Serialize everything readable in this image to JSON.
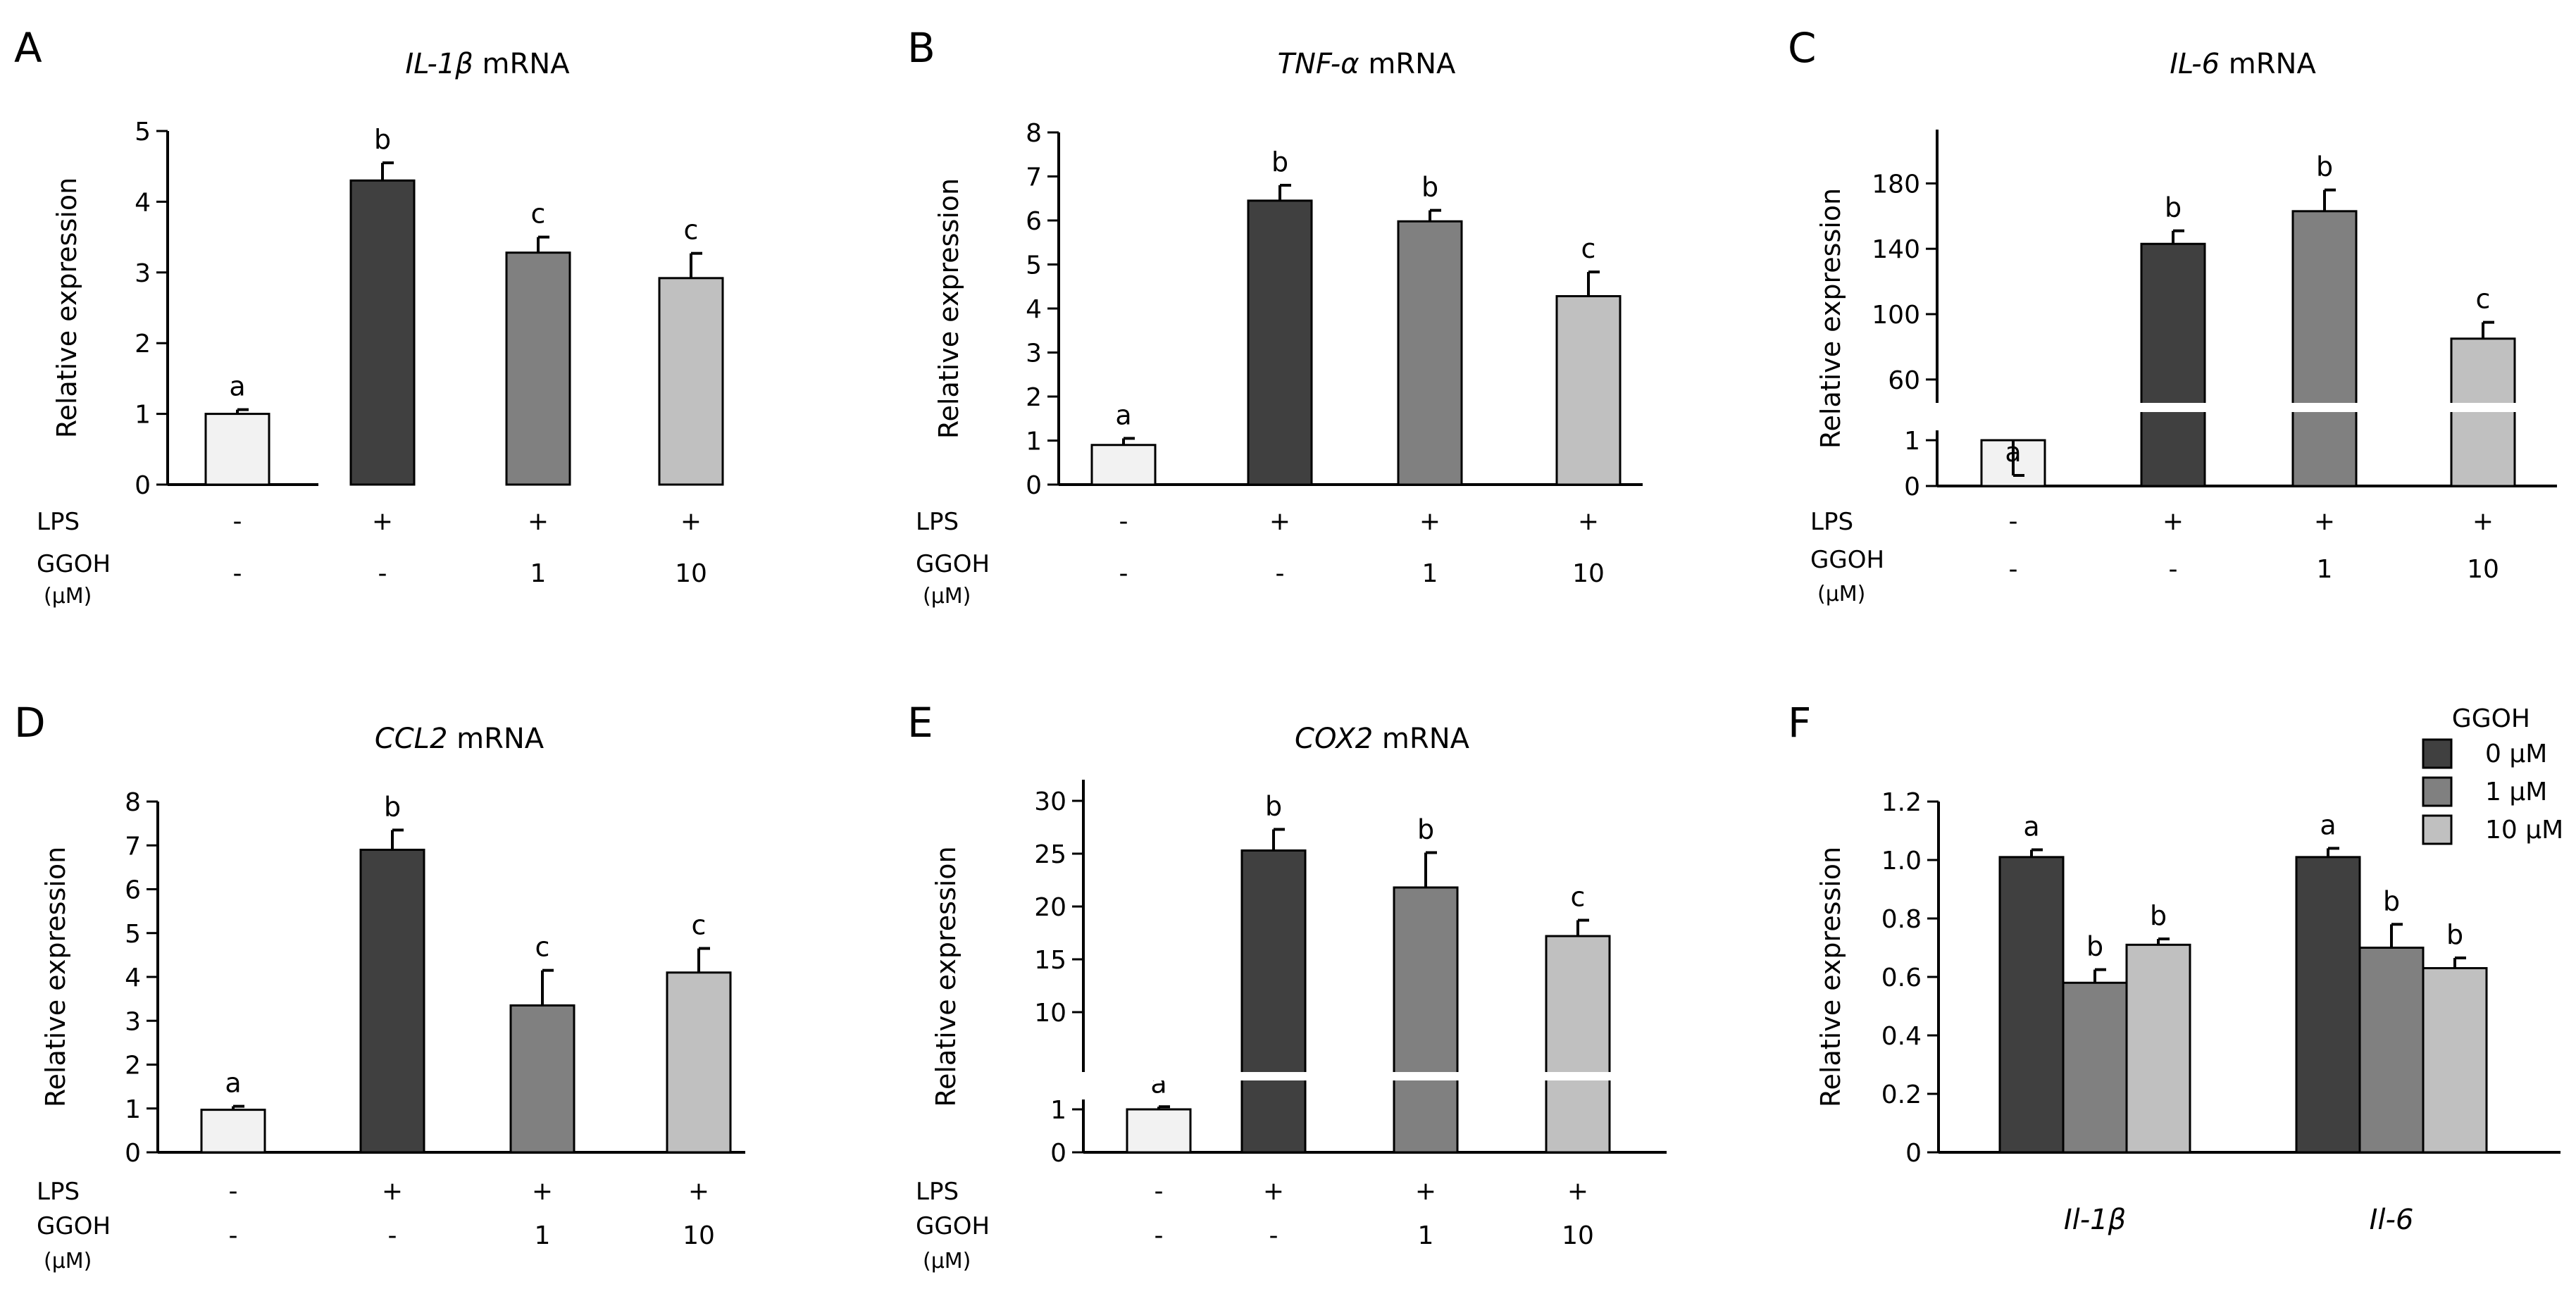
{
  "figure": {
    "colors": {
      "neg": "#f2f2f2",
      "c0": "#404040",
      "c1": "#808080",
      "c10": "#c0c0c0",
      "ink": "#000000"
    }
  },
  "chart_data": [
    {
      "panel": "A",
      "type": "bar",
      "gene": "IL-1β",
      "suffix": " mRNA",
      "ylabel": "Relative expression",
      "ylim": [
        0,
        5
      ],
      "yticks": [
        "0",
        "1",
        "2",
        "3",
        "4",
        "5"
      ],
      "values": [
        1.0,
        4.3,
        3.28,
        2.92
      ],
      "errors": [
        0.06,
        0.25,
        0.22,
        0.35
      ],
      "letters": [
        "a",
        "b",
        "c",
        "c"
      ],
      "lps": [
        "-",
        "+",
        "+",
        "+"
      ],
      "ggoh": [
        "-",
        "-",
        "1",
        "10"
      ]
    },
    {
      "panel": "B",
      "type": "bar",
      "gene": "TNF-α",
      "suffix": " mRNA",
      "ylabel": "Relative expression",
      "ylim": [
        0,
        8
      ],
      "yticks": [
        "0",
        "1",
        "2",
        "3",
        "4",
        "5",
        "6",
        "7",
        "8"
      ],
      "values": [
        0.9,
        6.45,
        5.98,
        4.28
      ],
      "errors": [
        0.15,
        0.35,
        0.25,
        0.55
      ],
      "letters": [
        "a",
        "b",
        "b",
        "c"
      ],
      "lps": [
        "-",
        "+",
        "+",
        "+"
      ],
      "ggoh": [
        "-",
        "-",
        "1",
        "10"
      ]
    },
    {
      "panel": "C",
      "type": "bar",
      "gene": "IL-6",
      "suffix": " mRNA",
      "ylabel": "Relative expression",
      "axis_break": true,
      "ylim_lower": [
        0,
        1
      ],
      "ylim_upper": [
        50,
        200
      ],
      "yticks_lower": [
        "0",
        "1"
      ],
      "yticks_upper": [
        "60",
        "100",
        "140",
        "180"
      ],
      "values": [
        1.0,
        143,
        163,
        85
      ],
      "errors": [
        0.3,
        8,
        13,
        10
      ],
      "letters": [
        "a",
        "b",
        "b",
        "c"
      ],
      "lps": [
        "-",
        "+",
        "+",
        "+"
      ],
      "ggoh": [
        "-",
        "-",
        "1",
        "10"
      ]
    },
    {
      "panel": "D",
      "type": "bar",
      "gene": "CCL2",
      "suffix": " mRNA",
      "ylabel": "Relative expression",
      "ylim": [
        0,
        8
      ],
      "yticks": [
        "0",
        "1",
        "2",
        "3",
        "4",
        "5",
        "6",
        "7",
        "8"
      ],
      "values": [
        0.97,
        6.9,
        3.35,
        4.1
      ],
      "errors": [
        0.08,
        0.45,
        0.8,
        0.55
      ],
      "letters": [
        "a",
        "b",
        "c",
        "c"
      ],
      "lps": [
        "-",
        "+",
        "+",
        "+"
      ],
      "ggoh": [
        "-",
        "-",
        "1",
        "10"
      ]
    },
    {
      "panel": "E",
      "type": "bar",
      "gene": "COX2",
      "suffix": " mRNA",
      "ylabel": "Relative expression",
      "axis_break": true,
      "ylim_lower": [
        0,
        1
      ],
      "ylim_upper": [
        5,
        30
      ],
      "yticks_lower": [
        "0",
        "1"
      ],
      "yticks_upper": [
        "10",
        "15",
        "20",
        "25",
        "30"
      ],
      "values": [
        1.0,
        25.3,
        21.8,
        17.2
      ],
      "errors": [
        0.05,
        2.0,
        3.3,
        1.5
      ],
      "letters": [
        "a",
        "b",
        "b",
        "c"
      ],
      "lps": [
        "-",
        "+",
        "+",
        "+"
      ],
      "ggoh": [
        "-",
        "-",
        "1",
        "10"
      ]
    },
    {
      "panel": "F",
      "type": "bar",
      "ylabel": "Relative expression",
      "ylim": [
        0,
        1.2
      ],
      "yticks": [
        "0",
        "0.2",
        "0.4",
        "0.6",
        "0.8",
        "1.0",
        "1.2"
      ],
      "categories": [
        "Il-1β",
        "Il-6"
      ],
      "legend_title": "GGOH",
      "legend_position": "top-right",
      "series": [
        {
          "name": "0 μM",
          "values": [
            1.01,
            1.01
          ],
          "errors": [
            0.025,
            0.03
          ],
          "letters": [
            "a",
            "a"
          ]
        },
        {
          "name": "1 μM",
          "values": [
            0.58,
            0.7
          ],
          "errors": [
            0.045,
            0.08
          ],
          "letters": [
            "b",
            "b"
          ]
        },
        {
          "name": "10 μM",
          "values": [
            0.71,
            0.63
          ],
          "errors": [
            0.02,
            0.035
          ],
          "letters": [
            "b",
            "b"
          ]
        }
      ]
    }
  ],
  "row_labels": {
    "lps": "LPS",
    "ggoh": "GGOH",
    "unit": "(μM)"
  }
}
